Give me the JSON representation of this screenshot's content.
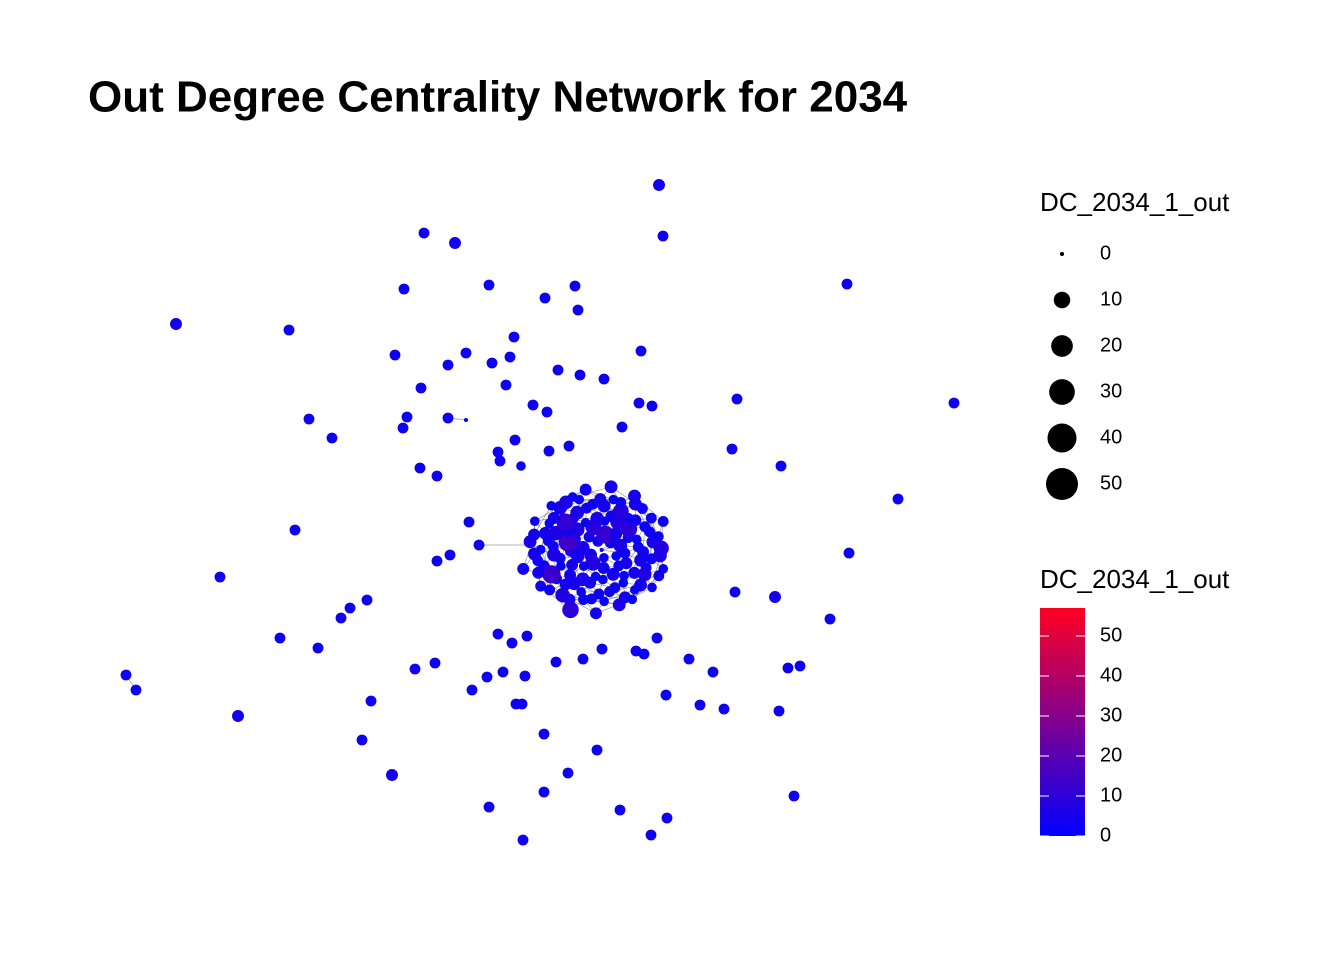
{
  "chart_data": {
    "type": "network",
    "title": "Out Degree Centrality Network for 2034",
    "size_legend": {
      "title": "DC_2034_1_out",
      "values": [
        0,
        10,
        20,
        30,
        40,
        50
      ]
    },
    "color_legend": {
      "title": "DC_2034_1_out",
      "lim": [
        0,
        57
      ],
      "ticks": [
        0,
        10,
        20,
        30,
        40,
        50
      ],
      "low_color": "#0000ff",
      "high_color": "#ff0022"
    },
    "nodes": {
      "values": [
        4,
        3,
        3,
        4,
        3,
        4,
        3,
        3,
        3,
        3,
        3,
        3,
        3,
        3,
        3,
        3,
        3,
        3,
        3,
        3,
        3,
        3,
        3,
        3,
        3,
        3,
        3,
        3,
        3,
        3,
        3,
        3,
        3,
        3,
        3,
        3,
        3,
        3,
        3,
        3,
        3,
        2,
        3,
        3,
        3,
        3,
        3,
        3,
        3,
        3,
        3,
        3,
        3,
        3,
        3,
        4,
        3,
        3,
        3,
        3,
        3,
        3,
        3,
        3,
        3,
        3,
        3,
        3,
        3,
        3,
        3,
        3,
        3,
        3,
        3,
        3,
        3,
        3,
        3,
        3,
        3,
        3,
        3,
        3,
        3,
        3,
        4,
        3,
        3,
        3,
        3,
        3,
        3,
        4,
        3,
        3,
        3,
        3,
        3,
        3,
        3,
        3,
        3,
        0,
        0,
        5,
        3,
        2,
        6,
        4,
        8,
        3,
        2,
        5,
        12,
        4,
        3,
        6,
        2,
        9,
        3,
        4,
        5,
        2,
        7,
        3,
        4,
        2,
        5,
        14,
        3,
        6,
        2,
        4,
        3,
        8,
        2,
        5,
        3,
        4,
        6,
        2,
        3,
        10,
        4,
        3,
        5,
        2,
        4,
        3,
        7,
        2,
        5,
        3,
        4,
        6,
        2,
        3,
        11,
        4,
        3,
        5,
        2,
        4,
        3,
        2,
        6,
        3,
        4,
        9,
        3,
        2,
        5,
        4,
        3,
        5,
        2,
        4,
        3,
        6,
        3,
        13,
        2,
        4,
        5,
        3,
        4,
        2,
        6,
        3,
        5,
        2,
        4,
        8,
        3,
        4,
        2,
        5,
        3,
        3,
        6,
        2,
        4,
        3,
        5,
        2,
        3,
        7,
        4,
        2,
        5,
        3,
        4,
        2,
        6,
        3,
        5,
        2,
        4,
        3,
        10,
        2,
        3,
        4,
        5
      ]
    }
  }
}
